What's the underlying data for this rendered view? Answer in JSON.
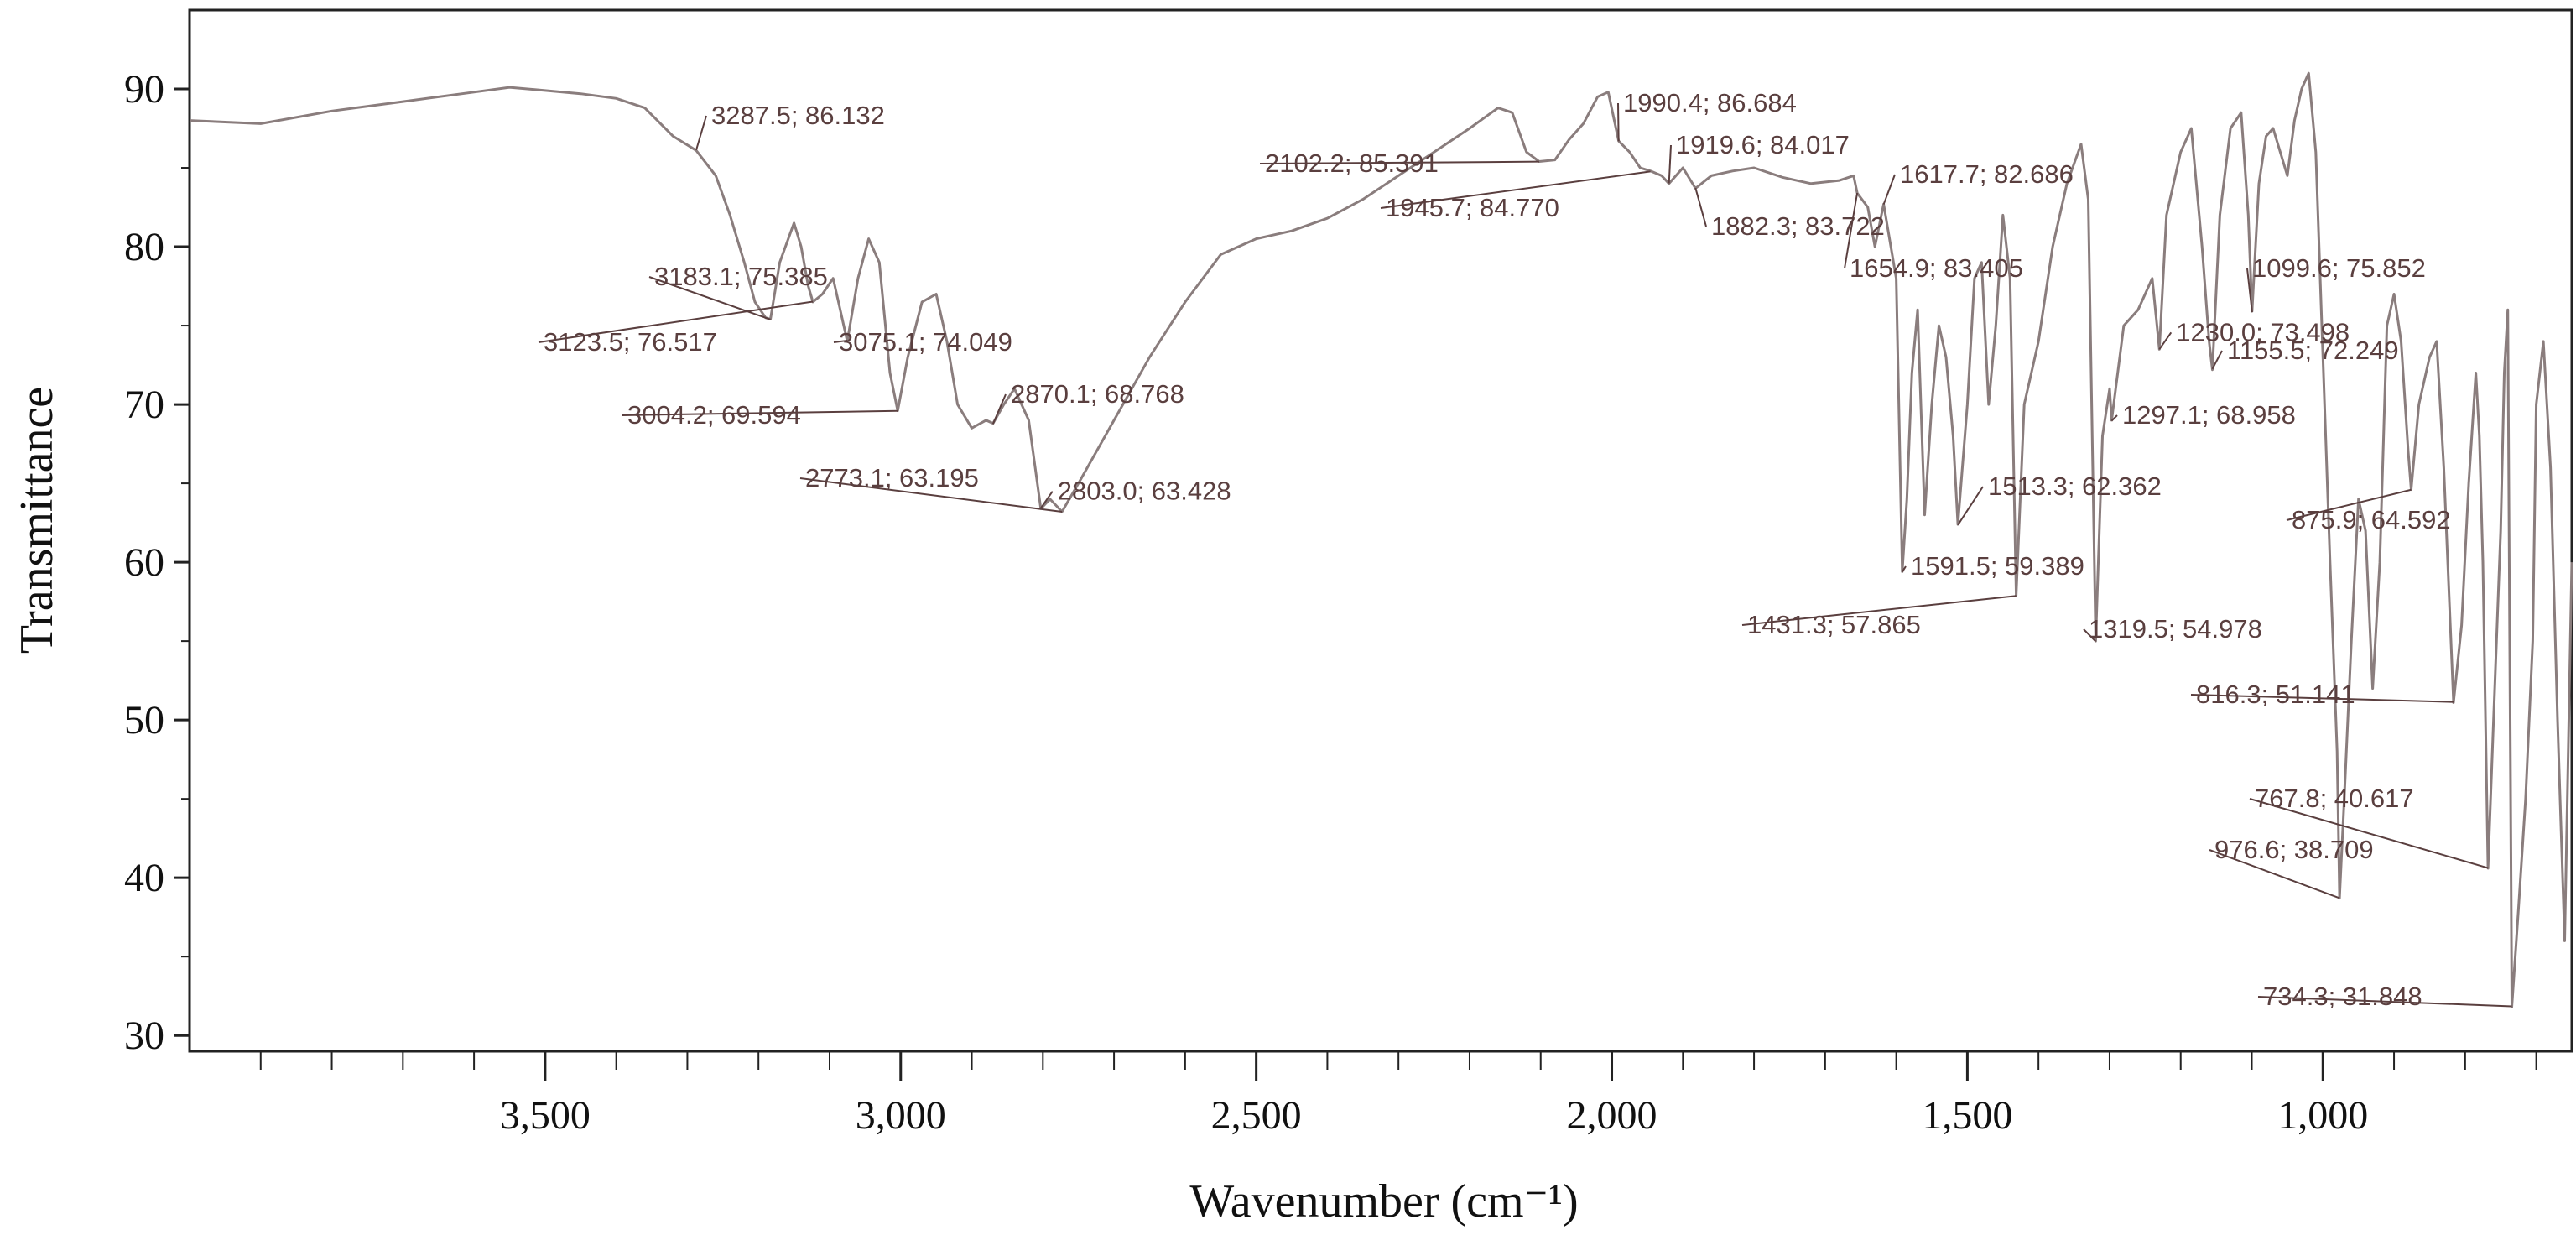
{
  "chart_data": {
    "type": "line",
    "title": "",
    "xlabel": "Wavenumber (cm⁻¹)",
    "ylabel": "Transmittance",
    "xlim": [
      4000,
      650
    ],
    "ylim": [
      29,
      95
    ],
    "x_reversed": true,
    "grid": false,
    "x_ticks": [
      3500,
      3000,
      2500,
      2000,
      1500,
      1000
    ],
    "x_tick_labels": [
      "3,500",
      "3,000",
      "2,500",
      "2,000",
      "1,500",
      "1,000"
    ],
    "y_ticks": [
      30,
      40,
      50,
      60,
      70,
      80,
      90
    ],
    "y_tick_labels": [
      "30",
      "40",
      "50",
      "60",
      "70",
      "80",
      "90"
    ],
    "colors": {
      "line": "#8a7d7d",
      "annotation": "#5a3f3f",
      "axis": "#222222"
    },
    "series": [
      {
        "x": [
          4000,
          3900,
          3800,
          3700,
          3600,
          3550,
          3500,
          3450,
          3400,
          3360,
          3320,
          3287.5,
          3260,
          3240,
          3220,
          3205,
          3190,
          3183.1,
          3170,
          3150,
          3140,
          3130,
          3123.5,
          3110,
          3095,
          3085,
          3075.1,
          3060,
          3045,
          3030,
          3015,
          3004.2,
          2990,
          2970,
          2950,
          2935,
          2920,
          2900,
          2880,
          2870.1,
          2855,
          2840,
          2820,
          2803,
          2790,
          2773.1,
          2750,
          2700,
          2650,
          2600,
          2550,
          2500,
          2450,
          2400,
          2350,
          2300,
          2250,
          2200,
          2160,
          2140,
          2120,
          2102.2,
          2080,
          2060,
          2040,
          2020,
          2005,
          1990.4,
          1975,
          1960,
          1945.7,
          1930,
          1919.6,
          1900,
          1882.3,
          1860,
          1830,
          1800,
          1760,
          1720,
          1680,
          1660,
          1654.9,
          1640,
          1630,
          1617.7,
          1600,
          1591.5,
          1585,
          1578,
          1570,
          1560,
          1550,
          1540,
          1530,
          1520,
          1513.3,
          1500,
          1490,
          1480,
          1470,
          1460,
          1450,
          1440,
          1431.3,
          1420,
          1400,
          1380,
          1360,
          1340,
          1330,
          1319.5,
          1310,
          1300,
          1297.1,
          1280,
          1260,
          1240,
          1230,
          1220,
          1200,
          1185,
          1170,
          1160,
          1155.5,
          1145,
          1130,
          1115,
          1105,
          1099.6,
          1090,
          1080,
          1070,
          1060,
          1050,
          1040,
          1030,
          1020,
          1010,
          1000,
          990,
          980,
          976.6,
          970,
          960,
          950,
          940,
          930,
          920,
          910,
          900,
          890,
          880,
          875.9,
          865,
          850,
          840,
          830,
          816.3,
          805,
          795,
          785,
          780,
          775,
          767.8,
          760,
          750,
          745,
          740,
          734.3,
          725,
          715,
          705,
          700,
          690,
          680,
          670,
          660,
          650
        ],
        "y": [
          88,
          87.8,
          88.6,
          89.2,
          89.8,
          90.1,
          89.9,
          89.7,
          89.4,
          88.8,
          87,
          86.1,
          84.5,
          82,
          79,
          76.5,
          75.5,
          75.4,
          79,
          81.5,
          80,
          77.5,
          76.5,
          77,
          78,
          76,
          74.0,
          78,
          80.5,
          79,
          72,
          69.6,
          73,
          76.5,
          77,
          74,
          70,
          68.5,
          69,
          68.8,
          70,
          71,
          69,
          63.4,
          64,
          63.2,
          65,
          69,
          73,
          76.5,
          79.5,
          80.5,
          81,
          81.8,
          83,
          84.5,
          86,
          87.5,
          88.8,
          88.5,
          86,
          85.4,
          85.5,
          86.8,
          87.8,
          89.5,
          89.8,
          86.7,
          86,
          85,
          84.8,
          84.5,
          84.0,
          85,
          83.7,
          84.5,
          84.8,
          85,
          84.4,
          84,
          84.2,
          84.5,
          83.4,
          82.5,
          80,
          82.7,
          78,
          59.4,
          64,
          72,
          76,
          63,
          70,
          75,
          73,
          68,
          62.4,
          70,
          78,
          79,
          70,
          75,
          82,
          78,
          57.9,
          70,
          74,
          80,
          84,
          86.5,
          83,
          55.0,
          68,
          71,
          69.0,
          75,
          76,
          78,
          73.5,
          82,
          86,
          87.5,
          80,
          74,
          72.2,
          82,
          87.5,
          88.5,
          82,
          75.9,
          84,
          87,
          87.5,
          86,
          84.5,
          88,
          90,
          91,
          86,
          73,
          60,
          48,
          38.7,
          45,
          55,
          64,
          62,
          52,
          60,
          75,
          77,
          74,
          67,
          64.6,
          70,
          73,
          74,
          66,
          51.1,
          56,
          65,
          72,
          68,
          60,
          40.6,
          50,
          62,
          72,
          76,
          31.8,
          38,
          45,
          55,
          70,
          74,
          66,
          50,
          36,
          60
        ]
      }
    ],
    "annotations": [
      {
        "label": "3287.5; 86.132",
        "x": 3287.5,
        "y": 86.132
      },
      {
        "label": "3183.1; 75.385",
        "x": 3183.1,
        "y": 75.385
      },
      {
        "label": "3123.5; 76.517",
        "x": 3123.5,
        "y": 76.517
      },
      {
        "label": "3075.1; 74.049",
        "x": 3075.1,
        "y": 74.049
      },
      {
        "label": "3004.2; 69.594",
        "x": 3004.2,
        "y": 69.594
      },
      {
        "label": "2870.1; 68.768",
        "x": 2870.1,
        "y": 68.768
      },
      {
        "label": "2773.1; 63.195",
        "x": 2773.1,
        "y": 63.195
      },
      {
        "label": "2803.0; 63.428",
        "x": 2803.0,
        "y": 63.428
      },
      {
        "label": "2102.2; 85.391",
        "x": 2102.2,
        "y": 85.391
      },
      {
        "label": "1990.4; 86.684",
        "x": 1990.4,
        "y": 86.684
      },
      {
        "label": "1919.6; 84.017",
        "x": 1919.6,
        "y": 84.017
      },
      {
        "label": "1945.7; 84.770",
        "x": 1945.7,
        "y": 84.77
      },
      {
        "label": "1882.3; 83.722",
        "x": 1882.3,
        "y": 83.722
      },
      {
        "label": "1617.7; 82.686",
        "x": 1617.7,
        "y": 82.686
      },
      {
        "label": "1654.9; 83.405",
        "x": 1654.9,
        "y": 83.405
      },
      {
        "label": "1230.0; 73.498",
        "x": 1230.0,
        "y": 73.498
      },
      {
        "label": "1297.1; 68.958",
        "x": 1297.1,
        "y": 68.958
      },
      {
        "label": "1513.3; 62.362",
        "x": 1513.3,
        "y": 62.362
      },
      {
        "label": "1591.5; 59.389",
        "x": 1591.5,
        "y": 59.389
      },
      {
        "label": "1431.3; 57.865",
        "x": 1431.3,
        "y": 57.865
      },
      {
        "label": "1319.5; 54.978",
        "x": 1319.5,
        "y": 54.978
      },
      {
        "label": "1099.6; 75.852",
        "x": 1099.6,
        "y": 75.852
      },
      {
        "label": "1155.5; 72.249",
        "x": 1155.5,
        "y": 72.249
      },
      {
        "label": "875.9; 64.592",
        "x": 875.9,
        "y": 64.592
      },
      {
        "label": "816.3; 51.141",
        "x": 816.3,
        "y": 51.141
      },
      {
        "label": "767.8; 40.617",
        "x": 767.8,
        "y": 40.617
      },
      {
        "label": "976.6; 38.709",
        "x": 976.6,
        "y": 38.709
      },
      {
        "label": "734.3; 31.848",
        "x": 734.3,
        "y": 31.848
      }
    ]
  }
}
